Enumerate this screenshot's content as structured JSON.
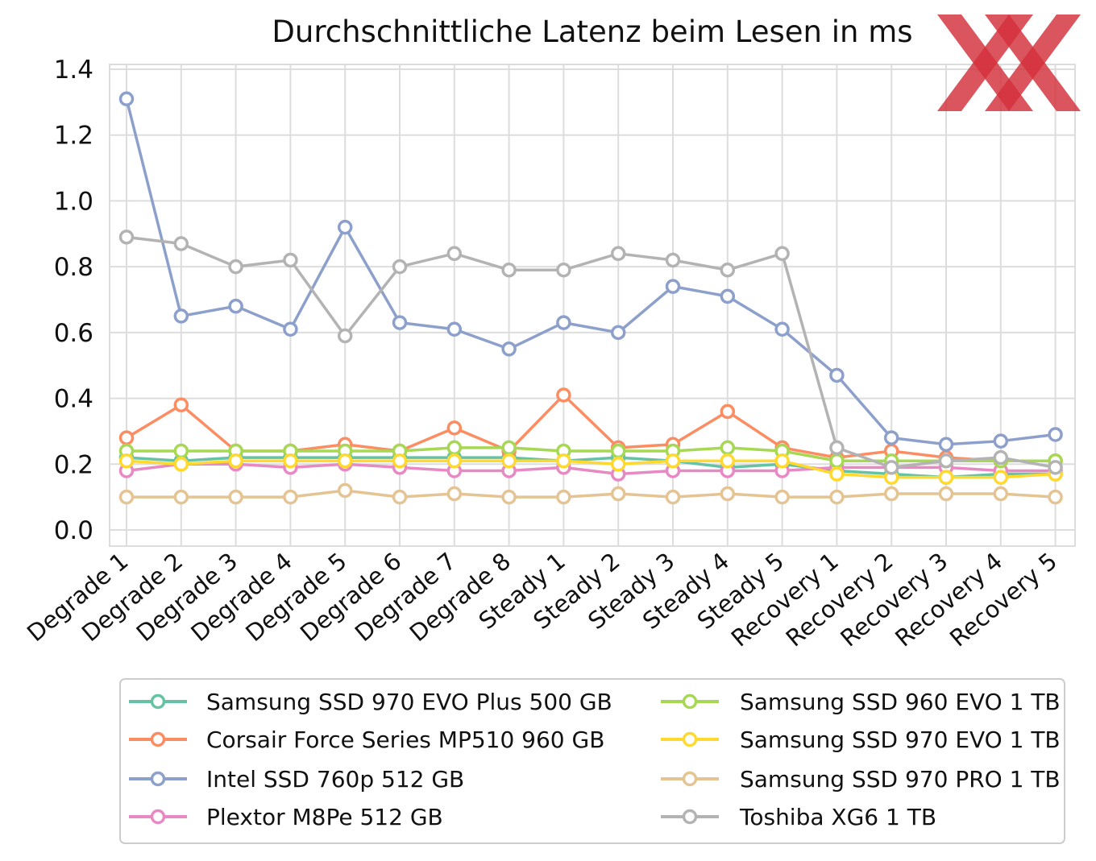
{
  "logo_text": "XX",
  "chart_data": {
    "type": "line",
    "title": "Durchschnittliche Latenz beim Lesen in ms",
    "xlabel": "",
    "ylabel": "",
    "ylim": [
      0.0,
      1.4
    ],
    "yticks": [
      "0.0",
      "0.2",
      "0.4",
      "0.6",
      "0.8",
      "1.0",
      "1.2",
      "1.4"
    ],
    "grid": true,
    "legend_position": "bottom",
    "categories": [
      "Degrade 1",
      "Degrade 2",
      "Degrade 3",
      "Degrade 4",
      "Degrade 5",
      "Degrade 6",
      "Degrade 7",
      "Degrade 8",
      "Steady 1",
      "Steady 2",
      "Steady 3",
      "Steady 4",
      "Steady 5",
      "Recovery 1",
      "Recovery 2",
      "Recovery 3",
      "Recovery 4",
      "Recovery 5"
    ],
    "series": [
      {
        "name": "Samsung SSD 970 EVO Plus 500 GB",
        "color": "#66c2a5",
        "values": [
          0.22,
          0.21,
          0.22,
          0.22,
          0.22,
          0.22,
          0.22,
          0.22,
          0.21,
          0.22,
          0.21,
          0.19,
          0.2,
          0.18,
          0.17,
          0.16,
          0.17,
          0.17
        ]
      },
      {
        "name": "Corsair Force Series MP510 960 GB",
        "color": "#fc8d62",
        "values": [
          0.28,
          0.38,
          0.24,
          0.24,
          0.26,
          0.24,
          0.31,
          0.24,
          0.41,
          0.25,
          0.26,
          0.36,
          0.25,
          0.22,
          0.24,
          0.22,
          0.21,
          0.21
        ]
      },
      {
        "name": "Intel SSD 760p 512 GB",
        "color": "#8da0cb",
        "values": [
          1.31,
          0.65,
          0.68,
          0.61,
          0.92,
          0.63,
          0.61,
          0.55,
          0.63,
          0.6,
          0.74,
          0.71,
          0.61,
          0.47,
          0.28,
          0.26,
          0.27,
          0.29
        ]
      },
      {
        "name": "Plextor M8Pe 512 GB",
        "color": "#e78ac3",
        "values": [
          0.18,
          0.2,
          0.2,
          0.19,
          0.2,
          0.19,
          0.18,
          0.18,
          0.19,
          0.17,
          0.18,
          0.18,
          0.18,
          0.19,
          0.19,
          0.19,
          0.18,
          0.18
        ]
      },
      {
        "name": "Samsung SSD 960 EVO 1 TB",
        "color": "#a6d854",
        "values": [
          0.24,
          0.24,
          0.24,
          0.24,
          0.24,
          0.24,
          0.25,
          0.25,
          0.24,
          0.24,
          0.24,
          0.25,
          0.24,
          0.21,
          0.21,
          0.21,
          0.21,
          0.21
        ]
      },
      {
        "name": "Samsung SSD 970 EVO 1 TB",
        "color": "#ffd92f",
        "values": [
          0.21,
          0.2,
          0.21,
          0.21,
          0.21,
          0.21,
          0.21,
          0.21,
          0.21,
          0.2,
          0.21,
          0.21,
          0.21,
          0.17,
          0.16,
          0.16,
          0.16,
          0.17
        ]
      },
      {
        "name": "Samsung SSD 970 PRO 1 TB",
        "color": "#e5c494",
        "values": [
          0.1,
          0.1,
          0.1,
          0.1,
          0.12,
          0.1,
          0.11,
          0.1,
          0.1,
          0.11,
          0.1,
          0.11,
          0.1,
          0.1,
          0.11,
          0.11,
          0.11,
          0.1
        ]
      },
      {
        "name": "Toshiba XG6 1 TB",
        "color": "#b3b3b3",
        "values": [
          0.89,
          0.87,
          0.8,
          0.82,
          0.59,
          0.8,
          0.84,
          0.79,
          0.79,
          0.84,
          0.82,
          0.79,
          0.84,
          0.25,
          0.19,
          0.21,
          0.22,
          0.19
        ]
      }
    ]
  }
}
